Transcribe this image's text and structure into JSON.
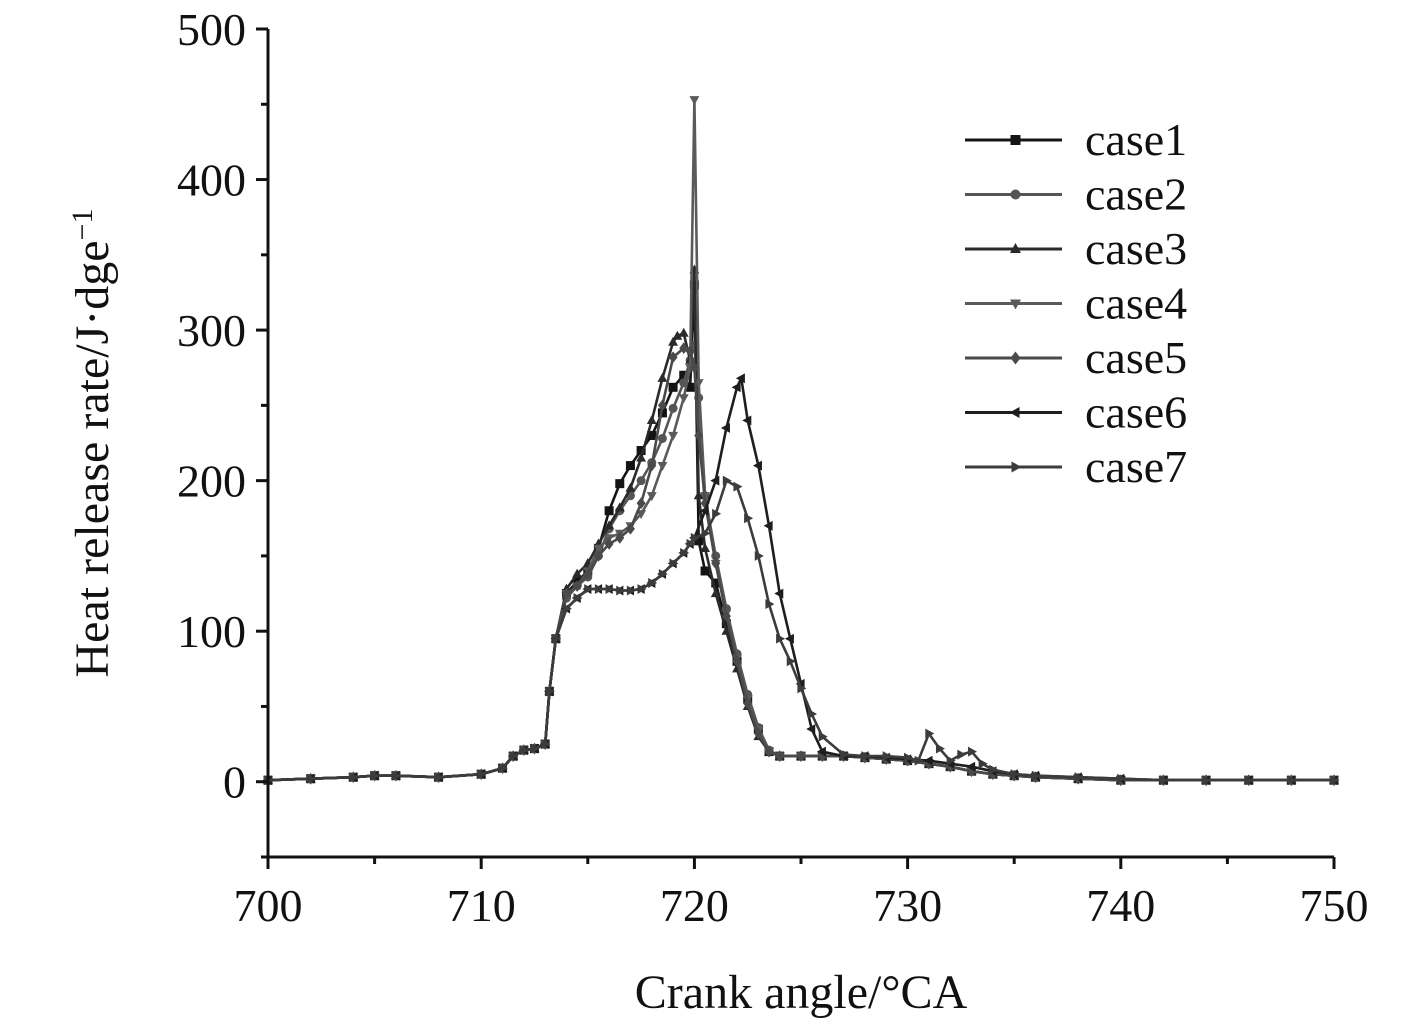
{
  "chart_data": {
    "type": "line",
    "title": "",
    "xlabel": "Crank angle/°CA",
    "ylabel": "Heat release rate/J·dge",
    "ylabel_sup": "−1",
    "xlim": [
      700,
      750
    ],
    "ylim": [
      -50,
      500
    ],
    "xticks": [
      700,
      710,
      720,
      730,
      740,
      750
    ],
    "yticks": [
      0,
      100,
      200,
      300,
      400,
      500
    ],
    "grid": false,
    "legend_position": "top-right",
    "series": [
      {
        "name": "case1",
        "marker": "square",
        "color": "#141414",
        "x": [
          700,
          702,
          704,
          705,
          706,
          708,
          710,
          711,
          711.5,
          712,
          712.5,
          713,
          713.2,
          713.5,
          714,
          714.5,
          715,
          715.5,
          716,
          716.5,
          717,
          717.5,
          718,
          718.5,
          719,
          719.5,
          719.8,
          720,
          720.2,
          720.5,
          721,
          721.5,
          722,
          722.5,
          723,
          723.5,
          724,
          725,
          726,
          727,
          728,
          729,
          730,
          731,
          732,
          733,
          734,
          735,
          736,
          738,
          740,
          742,
          744,
          746,
          748,
          750
        ],
        "y": [
          1,
          2,
          3,
          4,
          4,
          3,
          5,
          9,
          17,
          21,
          22,
          25,
          60,
          95,
          125,
          133,
          140,
          155,
          180,
          198,
          210,
          220,
          230,
          245,
          262,
          270,
          262,
          330,
          160,
          140,
          132,
          105,
          80,
          55,
          35,
          20,
          17,
          17,
          17,
          17,
          16,
          15,
          14,
          12,
          10,
          7,
          5,
          4,
          3,
          2,
          1,
          1,
          1,
          1,
          1,
          1
        ]
      },
      {
        "name": "case2",
        "marker": "circle",
        "color": "#555555",
        "x": [
          700,
          702,
          704,
          705,
          706,
          708,
          710,
          711,
          711.5,
          712,
          712.5,
          713,
          713.2,
          713.5,
          714,
          714.5,
          715,
          715.5,
          716,
          716.5,
          717,
          717.5,
          718,
          718.5,
          719,
          719.5,
          719.8,
          720,
          720.2,
          720.5,
          721,
          721.5,
          722,
          722.5,
          723,
          723.5,
          724,
          725,
          726,
          727,
          728,
          729,
          730,
          731,
          732,
          733,
          734,
          735,
          736,
          738,
          740,
          742,
          744,
          746,
          748,
          750
        ],
        "y": [
          1,
          2,
          3,
          4,
          4,
          3,
          5,
          9,
          17,
          21,
          22,
          25,
          60,
          95,
          122,
          130,
          136,
          150,
          168,
          180,
          190,
          200,
          212,
          228,
          248,
          265,
          280,
          290,
          255,
          190,
          150,
          115,
          85,
          58,
          36,
          21,
          17,
          17,
          17,
          17,
          16,
          15,
          14,
          12,
          10,
          7,
          5,
          4,
          3,
          2,
          1,
          1,
          1,
          1,
          1,
          1
        ]
      },
      {
        "name": "case3",
        "marker": "triangle-up",
        "color": "#2a2a2a",
        "x": [
          700,
          702,
          704,
          705,
          706,
          708,
          710,
          711,
          711.5,
          712,
          712.5,
          713,
          713.2,
          713.5,
          714,
          714.5,
          715,
          715.5,
          716,
          716.5,
          717,
          717.5,
          718,
          718.5,
          719,
          719.2,
          719.5,
          719.8,
          720,
          720.2,
          720.5,
          721,
          721.5,
          722,
          722.5,
          723,
          723.5,
          724,
          725,
          726,
          727,
          728,
          729,
          730,
          731,
          732,
          733,
          734,
          735,
          736,
          738,
          740,
          742,
          744,
          746,
          748,
          750
        ],
        "y": [
          1,
          2,
          3,
          4,
          4,
          3,
          5,
          9,
          17,
          21,
          22,
          25,
          60,
          95,
          128,
          138,
          145,
          158,
          170,
          182,
          195,
          215,
          240,
          268,
          292,
          296,
          298,
          280,
          340,
          190,
          155,
          125,
          100,
          75,
          50,
          30,
          20,
          17,
          17,
          17,
          17,
          16,
          15,
          14,
          12,
          10,
          7,
          5,
          4,
          3,
          2,
          1,
          1,
          1,
          1,
          1,
          1
        ]
      },
      {
        "name": "case4",
        "marker": "triangle-down",
        "color": "#5a5a5a",
        "x": [
          700,
          702,
          704,
          705,
          706,
          708,
          710,
          711,
          711.5,
          712,
          712.5,
          713,
          713.2,
          713.5,
          714,
          714.5,
          715,
          715.5,
          716,
          716.5,
          717,
          717.5,
          718,
          718.5,
          719,
          719.5,
          719.8,
          720,
          720.2,
          720.5,
          721,
          721.5,
          722,
          722.5,
          723,
          723.5,
          724,
          725,
          726,
          727,
          728,
          729,
          730,
          731,
          732,
          733,
          734,
          735,
          736,
          738,
          740,
          742,
          744,
          746,
          748,
          750
        ],
        "y": [
          1,
          2,
          3,
          4,
          4,
          3,
          5,
          9,
          17,
          21,
          22,
          25,
          60,
          95,
          125,
          130,
          140,
          155,
          162,
          165,
          170,
          178,
          190,
          210,
          230,
          255,
          275,
          453,
          265,
          190,
          145,
          112,
          82,
          55,
          34,
          20,
          17,
          17,
          17,
          17,
          16,
          15,
          14,
          12,
          10,
          7,
          5,
          4,
          3,
          2,
          1,
          1,
          1,
          1,
          1,
          1
        ]
      },
      {
        "name": "case5",
        "marker": "diamond",
        "color": "#4a4a4a",
        "x": [
          700,
          702,
          704,
          705,
          706,
          708,
          710,
          711,
          711.5,
          712,
          712.5,
          713,
          713.2,
          713.5,
          714,
          714.5,
          715,
          715.5,
          716,
          716.5,
          717,
          717.5,
          718,
          718.5,
          719,
          719.5,
          719.8,
          720,
          720.2,
          720.5,
          721,
          721.5,
          722,
          722.5,
          723,
          723.5,
          724,
          725,
          726,
          727,
          728,
          729,
          730,
          731,
          732,
          733,
          734,
          735,
          736,
          738,
          740,
          742,
          744,
          746,
          748,
          750
        ],
        "y": [
          1,
          2,
          3,
          4,
          4,
          3,
          5,
          9,
          17,
          21,
          22,
          25,
          60,
          95,
          125,
          130,
          138,
          150,
          158,
          162,
          168,
          185,
          210,
          250,
          282,
          288,
          286,
          275,
          230,
          185,
          145,
          110,
          80,
          52,
          32,
          20,
          17,
          17,
          17,
          17,
          16,
          15,
          14,
          12,
          10,
          7,
          5,
          4,
          3,
          2,
          1,
          1,
          1,
          1,
          1,
          1
        ]
      },
      {
        "name": "case6",
        "marker": "triangle-left",
        "color": "#1e1e1e",
        "x": [
          700,
          702,
          704,
          705,
          706,
          708,
          710,
          711,
          711.5,
          712,
          712.5,
          713,
          713.2,
          713.5,
          714,
          714.5,
          715,
          715.5,
          716,
          716.5,
          717,
          717.5,
          718,
          718.5,
          719,
          719.5,
          719.8,
          720,
          720.5,
          721,
          721.5,
          722,
          722.2,
          722.5,
          723,
          723.5,
          724,
          724.5,
          725,
          725.5,
          726,
          727,
          728,
          729,
          730,
          731,
          732,
          733,
          734,
          735,
          736,
          738,
          740,
          742,
          744,
          746,
          748,
          750
        ],
        "y": [
          1,
          2,
          3,
          4,
          4,
          3,
          5,
          9,
          17,
          21,
          22,
          25,
          60,
          95,
          115,
          122,
          128,
          128,
          128,
          127,
          127,
          128,
          132,
          138,
          145,
          152,
          158,
          162,
          180,
          200,
          235,
          262,
          268,
          240,
          210,
          170,
          125,
          95,
          65,
          35,
          20,
          17,
          17,
          16,
          15,
          14,
          12,
          10,
          7,
          5,
          4,
          3,
          2,
          1,
          1,
          1,
          1,
          1
        ]
      },
      {
        "name": "case7",
        "marker": "triangle-right",
        "color": "#3c3c3c",
        "x": [
          700,
          702,
          704,
          705,
          706,
          708,
          710,
          711,
          711.5,
          712,
          712.5,
          713,
          713.2,
          713.5,
          714,
          714.5,
          715,
          715.5,
          716,
          716.5,
          717,
          717.5,
          718,
          718.5,
          719,
          719.5,
          719.8,
          720,
          720.5,
          721,
          721.5,
          722,
          722.5,
          723,
          723.5,
          724,
          724.5,
          725,
          725.5,
          726,
          727,
          728,
          729,
          730,
          730.5,
          731,
          731.5,
          732,
          732.5,
          733,
          733.5,
          734,
          735,
          736,
          738,
          740,
          742,
          744,
          746,
          748,
          750
        ],
        "y": [
          1,
          2,
          3,
          4,
          4,
          3,
          5,
          9,
          17,
          21,
          22,
          25,
          60,
          95,
          115,
          122,
          128,
          128,
          128,
          127,
          127,
          128,
          132,
          138,
          145,
          152,
          158,
          162,
          165,
          178,
          200,
          196,
          175,
          150,
          118,
          95,
          80,
          62,
          45,
          30,
          18,
          17,
          17,
          16,
          14,
          32,
          22,
          14,
          18,
          20,
          12,
          8,
          5,
          4,
          3,
          2,
          1,
          1,
          1,
          1,
          1
        ]
      }
    ]
  }
}
